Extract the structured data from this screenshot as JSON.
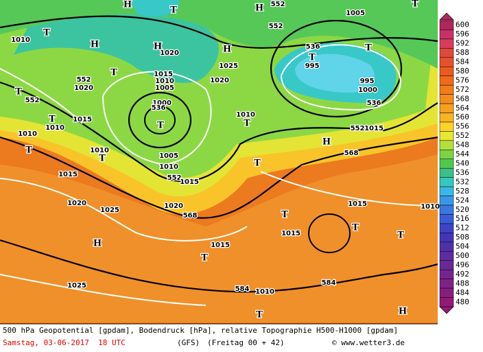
{
  "map": {
    "labels": [
      "T",
      "H",
      "H",
      "552",
      "1005",
      "T",
      "T",
      "H",
      "H",
      "1020",
      "H",
      "1025",
      "552",
      "536",
      "T",
      "995",
      "T",
      "1010",
      "552",
      "1020",
      "T",
      "1015",
      "1010",
      "1005",
      "1020",
      "T",
      "552",
      "1000",
      "536",
      "T",
      "995",
      "1000",
      "536",
      "1010",
      "T",
      "1015",
      "T",
      "1010",
      "552",
      "1015",
      "1010",
      "T",
      "H",
      "568",
      "1010",
      "T",
      "1005",
      "1010",
      "T",
      "552",
      "1015",
      "1015",
      "1020",
      "1025",
      "1020",
      "568",
      "1015",
      "1010",
      "T",
      "T",
      "1015",
      "T",
      "H",
      "1015",
      "T",
      "1025",
      "584",
      "1010",
      "584",
      "T",
      "H"
    ]
  },
  "colorbar": {
    "ticks": [
      600,
      596,
      592,
      588,
      584,
      580,
      576,
      572,
      568,
      564,
      560,
      556,
      552,
      548,
      544,
      540,
      536,
      532,
      528,
      524,
      520,
      516,
      512,
      508,
      504,
      500,
      496,
      492,
      488,
      484,
      480
    ],
    "colors": [
      "#b4245c",
      "#c8306a",
      "#d83c5a",
      "#e0483c",
      "#e8502c",
      "#ec5a20",
      "#f06a18",
      "#f27c18",
      "#f48c1c",
      "#f6a020",
      "#f8b422",
      "#fcd424",
      "#e8e830",
      "#b4e03c",
      "#7cd444",
      "#50c850",
      "#3cc088",
      "#34c8c0",
      "#38b8e8",
      "#3898e8",
      "#3878e0",
      "#3a5cd8",
      "#3c44c8",
      "#4434b8",
      "#5030a8",
      "#5c2ca0",
      "#682898",
      "#742490",
      "#802088",
      "#8a1c80",
      "#941878"
    ]
  },
  "footer": {
    "description": "500 hPa Geopotential [gpdam], Bodendruck [hPa], relative Topographie H500-H1000 [gpdam]",
    "date": "Samstag, 03-06-2017  18 UTC",
    "model": "(GFS)",
    "run": "(Freitag 00 + 42)",
    "credit": "© www.wetter3.de"
  }
}
